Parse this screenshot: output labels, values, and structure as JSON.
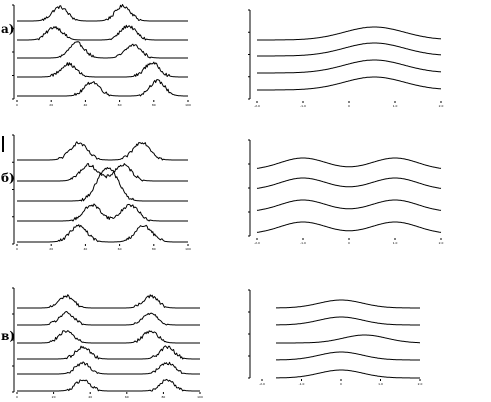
{
  "chart_data": [
    {
      "type": "line",
      "panel_label": "а)",
      "side": "left",
      "noisy": true,
      "xlim": [
        0,
        100
      ],
      "x_ticks": [
        "0",
        "20",
        "40",
        "60",
        "80",
        "100"
      ],
      "series": [
        {
          "peaks": [
            [
              25,
              14,
              4.5
            ],
            [
              62,
              15,
              4.5
            ]
          ]
        },
        {
          "peaks": [
            [
              22,
              13,
              4.5
            ],
            [
              65,
              14,
              4.5
            ]
          ]
        },
        {
          "peaks": [
            [
              35,
              15,
              4.5
            ],
            [
              68,
              13,
              4.5
            ]
          ]
        },
        {
          "peaks": [
            [
              30,
              13,
              4.5
            ],
            [
              79,
              14,
              4.5
            ]
          ]
        },
        {
          "peaks": [
            [
              44,
              14,
              4.5
            ],
            [
              82,
              15,
              4.5
            ]
          ]
        }
      ]
    },
    {
      "type": "line",
      "panel_label": "",
      "side": "right",
      "noisy": false,
      "xlim": [
        -2,
        2
      ],
      "x_ticks": [
        "-2.0",
        "-1.0",
        "0",
        "1.0",
        "2.0"
      ],
      "series": [
        {
          "peaks": [
            [
              0.55,
              13,
              0.65
            ]
          ]
        },
        {
          "peaks": [
            [
              0.55,
              13,
              0.65
            ]
          ]
        },
        {
          "peaks": [
            [
              0.55,
              13,
              0.65
            ]
          ]
        },
        {
          "peaks": [
            [
              0.55,
              13,
              0.65
            ]
          ]
        }
      ]
    },
    {
      "type": "line",
      "panel_label": "б)",
      "side": "left",
      "noisy": true,
      "xlim": [
        0,
        100
      ],
      "x_ticks": [
        "0",
        "20",
        "40",
        "60",
        "80",
        "100"
      ],
      "series": [
        {
          "peaks": [
            [
              36,
              17,
              5
            ],
            [
              73,
              18,
              5
            ]
          ]
        },
        {
          "peaks": [
            [
              42,
              16,
              5
            ],
            [
              62,
              16,
              5
            ]
          ]
        },
        {
          "peaks": [
            [
              50,
              20,
              5
            ],
            [
              56,
              20,
              5
            ]
          ]
        },
        {
          "peaks": [
            [
              44,
              16,
              5
            ],
            [
              66,
              16,
              5
            ]
          ]
        },
        {
          "peaks": [
            [
              36,
              16,
              5
            ],
            [
              74,
              16,
              5
            ]
          ]
        }
      ]
    },
    {
      "type": "line",
      "panel_label": "",
      "side": "right",
      "noisy": false,
      "xlim": [
        -2,
        2
      ],
      "x_ticks": [
        "-2.0",
        "-1.0",
        "0",
        "1.0",
        "2.0"
      ],
      "series": [
        {
          "peaks": [
            [
              -1.0,
              12,
              0.5
            ],
            [
              1.0,
              12,
              0.5
            ]
          ]
        },
        {
          "peaks": [
            [
              -1.0,
              12,
              0.5
            ],
            [
              1.0,
              12,
              0.5
            ]
          ]
        },
        {
          "peaks": [
            [
              -1.0,
              12,
              0.5
            ],
            [
              1.0,
              12,
              0.5
            ]
          ]
        },
        {
          "peaks": [
            [
              -1.0,
              12,
              0.5
            ],
            [
              1.0,
              12,
              0.5
            ]
          ]
        }
      ]
    },
    {
      "type": "line",
      "panel_label": "в)",
      "side": "left",
      "noisy": true,
      "xlim": [
        0,
        100
      ],
      "x_ticks": [
        "0",
        "20",
        "40",
        "60",
        "80",
        "100"
      ],
      "series": [
        {
          "peaks": [
            [
              27,
              12,
              4
            ],
            [
              73,
              12,
              4
            ]
          ]
        },
        {
          "peaks": [
            [
              27,
              12,
              4
            ],
            [
              73,
              12,
              4
            ]
          ]
        },
        {
          "peaks": [
            [
              27,
              12,
              4
            ],
            [
              73,
              12,
              4
            ]
          ]
        },
        {
          "peaks": [
            [
              36,
              12,
              4
            ],
            [
              82,
              12,
              4
            ]
          ]
        },
        {
          "peaks": [
            [
              36,
              11,
              4
            ],
            [
              82,
              11,
              4
            ]
          ]
        },
        {
          "peaks": [
            [
              36,
              11,
              4
            ],
            [
              82,
              11,
              4
            ]
          ]
        }
      ]
    },
    {
      "type": "line",
      "panel_label": "",
      "side": "right",
      "noisy": false,
      "xlim": [
        -2,
        2
      ],
      "x_ticks": [
        "-2.0",
        "-1.0",
        "0",
        "1.0",
        "2.0"
      ],
      "series": [
        {
          "peaks": [
            [
              0,
              8,
              0.55
            ]
          ]
        },
        {
          "peaks": [
            [
              0,
              8,
              0.55
            ]
          ]
        },
        {
          "peaks": [
            [
              0.6,
              8,
              0.55
            ]
          ]
        },
        {
          "peaks": [
            [
              0,
              8,
              0.55
            ]
          ]
        },
        {
          "peaks": [
            [
              0,
              8,
              0.55
            ]
          ]
        }
      ]
    }
  ]
}
